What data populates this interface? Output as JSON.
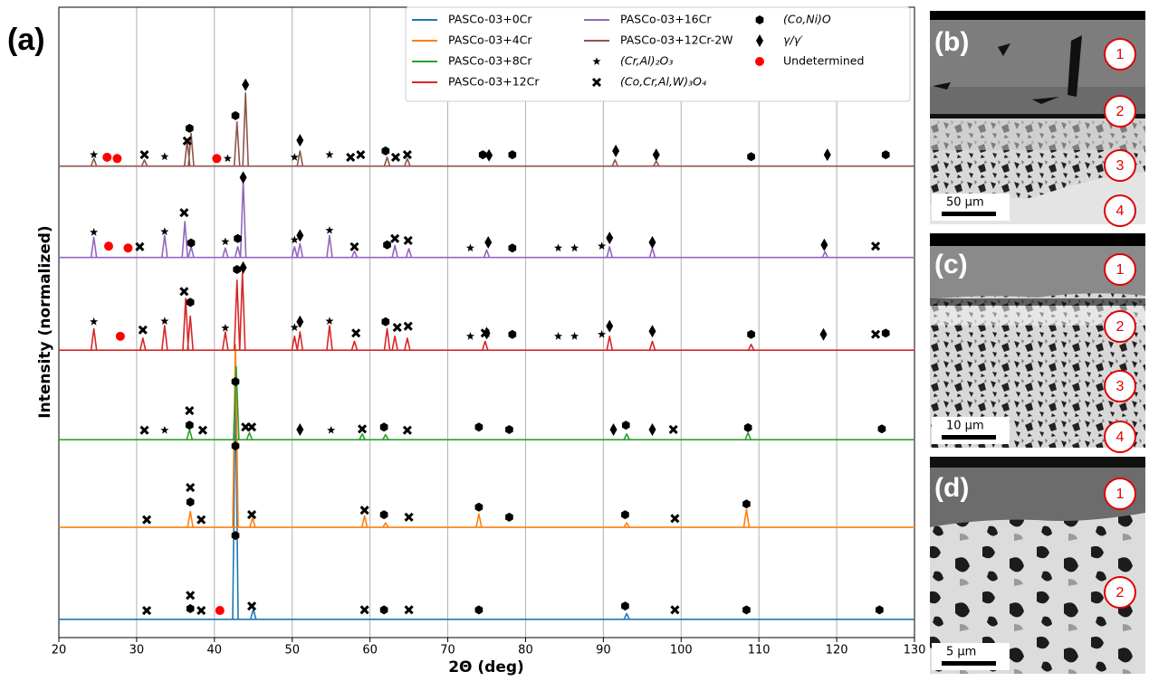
{
  "chart_data": {
    "type": "line",
    "panel_label": "(a)",
    "x_label": "2Θ (deg)",
    "y_label": "Intensity (normalized)",
    "xlim": [
      20,
      130
    ],
    "xticks": [
      20,
      30,
      40,
      50,
      60,
      70,
      80,
      90,
      100,
      110,
      120,
      130
    ],
    "ylim": [
      0,
      100
    ],
    "grid": true,
    "series": [
      {
        "name": "PASCo-03+0Cr",
        "color": "#1f77b4",
        "x": [
          20,
          42.7,
          45.0,
          93.0,
          130
        ],
        "values": [
          2.9,
          40.2,
          4.5,
          3.8,
          2.9
        ]
      },
      {
        "name": "PASCo-03+4Cr",
        "color": "#ff7f0e",
        "x": [
          20,
          36.9,
          42.7,
          44.9,
          59.3,
          62.0,
          74.0,
          93.0,
          108.4,
          130
        ],
        "values": [
          17.5,
          20.0,
          46.5,
          19.0,
          19.3,
          18.2,
          19.6,
          18.2,
          20.3,
          17.5
        ]
      },
      {
        "name": "PASCo-03+8Cr",
        "color": "#2ca02c",
        "x": [
          20,
          36.8,
          42.8,
          44.5,
          59.0,
          62.0,
          93.0,
          108.6,
          130
        ],
        "values": [
          31.4,
          33.0,
          43.0,
          32.5,
          32.3,
          32.2,
          32.3,
          32.5,
          31.4
        ]
      },
      {
        "name": "PASCo-03+12Cr",
        "color": "#d62728",
        "x": [
          20,
          24.5,
          30.8,
          33.6,
          36.3,
          36.9,
          41.4,
          42.9,
          43.6,
          50.3,
          51.0,
          54.8,
          58.0,
          62.2,
          63.2,
          64.8,
          74.8,
          90.8,
          96.3,
          109.0,
          130
        ],
        "values": [
          45.6,
          49.0,
          47.5,
          49.5,
          53.8,
          51.0,
          48.5,
          56.7,
          57.8,
          47.8,
          48.5,
          49.5,
          47.0,
          49.0,
          47.8,
          47.5,
          47.0,
          47.8,
          47.0,
          46.5,
          45.6
        ]
      },
      {
        "name": "PASCo-03+16Cr",
        "color": "#9467bd",
        "x": [
          20,
          24.5,
          33.6,
          36.2,
          37.0,
          41.4,
          43.0,
          43.7,
          50.3,
          51.0,
          54.8,
          58.0,
          63.2,
          65.0,
          75.0,
          90.8,
          96.3,
          118.5,
          130
        ],
        "values": [
          60.3,
          63.5,
          63.8,
          66.0,
          62.0,
          61.8,
          62.0,
          72.6,
          62.0,
          62.5,
          63.8,
          61.3,
          62.2,
          61.7,
          61.5,
          62.0,
          61.8,
          61.2,
          60.3
        ]
      },
      {
        "name": "PASCo-03+12Cr-2W",
        "color": "#8c564b",
        "x": [
          20,
          24.5,
          31.0,
          36.5,
          37.0,
          42.9,
          44.0,
          51.0,
          62.2,
          64.8,
          91.5,
          96.8,
          130
        ],
        "values": [
          74.8,
          76.0,
          75.8,
          78.8,
          80.0,
          81.8,
          86.4,
          77.2,
          76.2,
          76.0,
          75.8,
          75.6,
          74.8
        ]
      }
    ],
    "markers": [
      {
        "name": "(Cr,Al)₂O₃",
        "symbol": "star",
        "color": "#000000",
        "x": [
          24.5,
          33.6,
          41.7,
          50.3,
          54.8,
          24.5,
          33.6,
          41.4,
          50.3,
          54.8,
          72.9,
          84.2,
          86.3,
          89.8,
          24.5,
          33.6,
          41.4,
          50.3,
          54.8,
          72.9,
          84.2,
          86.3,
          89.8,
          33.6,
          55.0
        ],
        "y": [
          76.6,
          76.3,
          76.0,
          76.2,
          76.6,
          64.3,
          64.4,
          62.8,
          63.1,
          64.6,
          61.8,
          61.8,
          61.8,
          62.1,
          50.1,
          50.2,
          49.1,
          49.2,
          50.2,
          47.8,
          47.8,
          47.8,
          48.1,
          32.9,
          32.9
        ]
      },
      {
        "name": "(Co,Cr,Al,W)₃O₄",
        "symbol": "cross",
        "color": "#000000",
        "x": [
          31.0,
          36.5,
          57.5,
          58.8,
          63.3,
          64.8,
          36.1,
          30.4,
          58.0,
          63.2,
          64.9,
          125.0,
          36.1,
          30.8,
          58.2,
          63.5,
          64.9,
          74.8,
          125.0,
          36.8,
          31.0,
          38.5,
          44.0,
          44.8,
          59.0,
          64.8,
          99.0,
          36.9,
          31.3,
          38.3,
          44.8,
          59.3,
          65.0,
          99.2,
          36.9,
          31.3,
          38.3,
          44.8,
          59.3,
          65.0,
          99.2
        ],
        "y": [
          76.6,
          78.8,
          76.2,
          76.6,
          76.2,
          76.6,
          67.4,
          62.0,
          62.0,
          63.3,
          63.0,
          62.1,
          54.9,
          48.8,
          48.3,
          49.2,
          49.4,
          48.3,
          48.1,
          36.0,
          32.9,
          32.9,
          33.4,
          33.4,
          33.1,
          32.9,
          33.0,
          23.8,
          18.7,
          18.7,
          19.5,
          20.2,
          19.1,
          18.9,
          6.7,
          4.3,
          4.3,
          5.0,
          4.4,
          4.4,
          4.4
        ]
      },
      {
        "name": "(Co,Ni)O",
        "symbol": "hexagon",
        "color": "#000000",
        "x": [
          36.8,
          42.7,
          62.0,
          74.5,
          78.3,
          109.0,
          126.3,
          37.0,
          43.0,
          62.2,
          78.3,
          36.9,
          42.9,
          62.0,
          78.3,
          109.0,
          126.3,
          36.8,
          42.7,
          61.8,
          74.0,
          77.9,
          92.9,
          108.6,
          125.8,
          36.9,
          42.7,
          61.8,
          74.0,
          77.9,
          92.8,
          108.4,
          36.9,
          42.7,
          61.8,
          74.0,
          92.8,
          108.4,
          125.5
        ],
        "y": [
          80.8,
          82.8,
          77.2,
          76.6,
          76.6,
          76.3,
          76.6,
          62.6,
          63.3,
          62.3,
          61.8,
          53.2,
          58.4,
          50.1,
          48.1,
          48.1,
          48.3,
          33.7,
          40.6,
          33.4,
          33.4,
          33.0,
          33.7,
          33.3,
          33.1,
          21.5,
          30.4,
          19.5,
          20.7,
          19.1,
          19.5,
          21.2,
          4.6,
          16.2,
          4.4,
          4.4,
          5.0,
          4.4,
          4.4
        ]
      },
      {
        "name": "γ/γ′",
        "symbol": "diamond",
        "color": "#000000",
        "x": [
          44.0,
          51.0,
          75.3,
          91.6,
          96.8,
          118.8,
          43.7,
          51.0,
          75.2,
          90.8,
          96.3,
          118.4,
          43.7,
          51.0,
          75.0,
          90.8,
          96.3,
          118.3,
          51.0,
          91.3,
          96.3
        ],
        "y": [
          87.7,
          78.9,
          76.5,
          77.2,
          76.6,
          76.6,
          73.0,
          63.8,
          62.7,
          63.4,
          62.7,
          62.3,
          58.7,
          50.1,
          48.3,
          49.4,
          48.6,
          48.1,
          33.0,
          33.0,
          33.0
        ]
      },
      {
        "name": "Undetermined",
        "symbol": "circle",
        "color": "#ff0000",
        "x": [
          26.2,
          27.5,
          40.3,
          26.4,
          28.9,
          27.9,
          40.7
        ],
        "y": [
          76.2,
          76.0,
          76.0,
          62.1,
          61.8,
          47.8,
          4.3
        ]
      }
    ]
  },
  "panels": [
    {
      "label": "(b)",
      "layers": [
        "1",
        "2",
        "3",
        "4"
      ],
      "scale_bar": "50 µm"
    },
    {
      "label": "(c)",
      "layers": [
        "1",
        "2",
        "3",
        "4"
      ],
      "scale_bar": "10 µm"
    },
    {
      "label": "(d)",
      "layers": [
        "1",
        "2"
      ],
      "scale_bar": "5 µm"
    }
  ]
}
